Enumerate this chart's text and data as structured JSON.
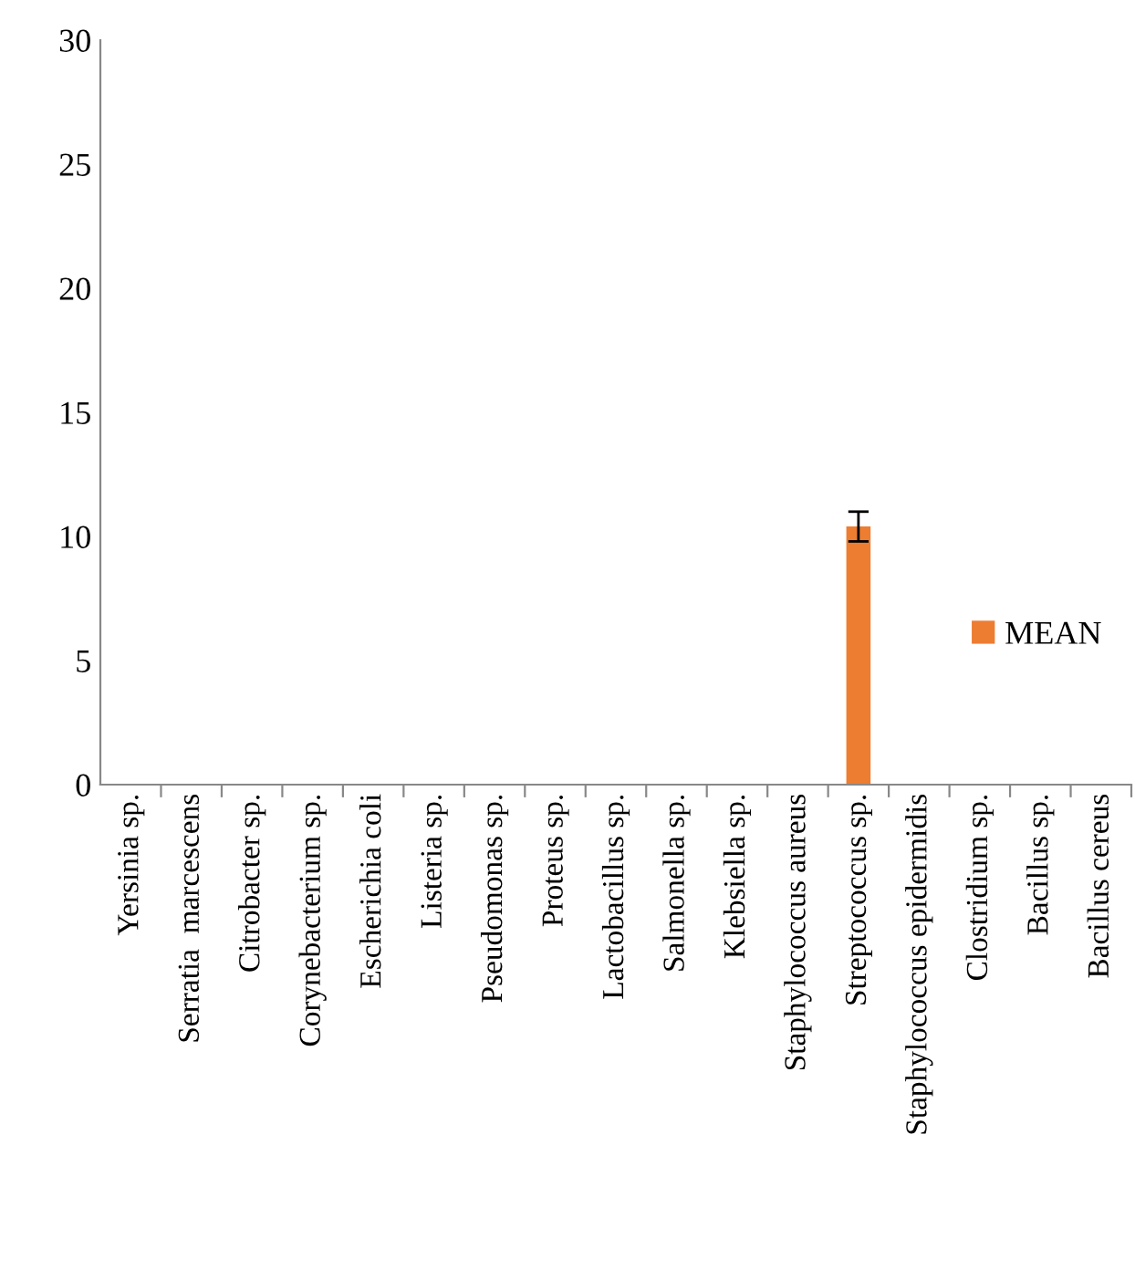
{
  "chart_data": {
    "type": "bar",
    "categories": [
      "Yersinia sp.",
      "Serratia  marcescens",
      "Citrobacter sp.",
      "Corynebacterium sp.",
      "Escherichia coli",
      "Listeria sp.",
      "Pseudomonas sp.",
      "Proteus sp.",
      "Lactobacillus sp.",
      "Salmonella sp.",
      "Klebsiella sp.",
      "Staphylococcus aureus",
      "Streptococcus sp.",
      "Staphylococcus epidermidis",
      "Clostridium sp.",
      "Bacillus sp.",
      "Bacillus cereus"
    ],
    "series": [
      {
        "name": "MEAN",
        "color": "#ed7d31",
        "values": [
          0,
          0,
          0,
          0,
          0,
          0,
          0,
          0,
          0,
          0,
          0,
          0,
          10.4,
          0,
          0,
          0,
          0
        ],
        "errors": [
          null,
          null,
          null,
          null,
          null,
          null,
          null,
          null,
          null,
          null,
          null,
          null,
          0.6,
          null,
          null,
          null,
          null
        ]
      }
    ],
    "ylim": [
      0,
      30
    ],
    "yticks": [
      0,
      5,
      10,
      15,
      20,
      25,
      30
    ],
    "grid": false,
    "legend": "right"
  }
}
